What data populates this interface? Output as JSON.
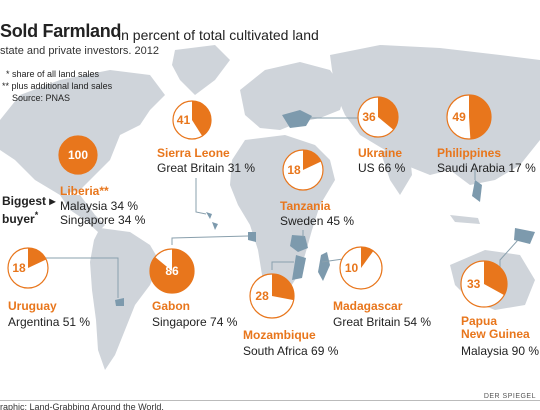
{
  "title": {
    "main": "Sold Farmland",
    "sub": "in percent of total cultivated land"
  },
  "subtitle": "state and private investors. 2012",
  "notes": {
    "star": "* share of all land sales",
    "dstar": "** plus additional land sales",
    "source": "Source: PNAS"
  },
  "biggest": {
    "line1": "Biggest ▸",
    "line2": "buyer",
    "mark": "*"
  },
  "footer": {
    "left": "raphic: Land-Grabbing Around the World.",
    "right": "DER SPIEGEL"
  },
  "colors": {
    "accent": "#e8761c",
    "map": "#cfd4da",
    "water": "#7d9aad",
    "line": "#8aa0ad"
  },
  "chart_data": {
    "type": "pie",
    "title": "Sold Farmland",
    "subtitle": "in percent of total cultivated land",
    "unit": "percent",
    "countries": [
      {
        "key": "sierra_leone",
        "country": "Sierra Leone",
        "value": 41,
        "buyers": [
          "Great Britain 31 %"
        ]
      },
      {
        "key": "liberia",
        "country": "Liberia",
        "mark": "**",
        "value": 100,
        "buyers": [
          "Malaysia 34 %",
          "Singapore 34 %"
        ]
      },
      {
        "key": "uruguay",
        "country": "Uruguay",
        "value": 18,
        "buyers": [
          "Argentina 51 %"
        ]
      },
      {
        "key": "gabon",
        "country": "Gabon",
        "value": 86,
        "buyers": [
          "Singapore 74 %"
        ]
      },
      {
        "key": "tanzania",
        "country": "Tanzania",
        "value": 18,
        "buyers": [
          "Sweden 45 %"
        ]
      },
      {
        "key": "ukraine",
        "country": "Ukraine",
        "value": 36,
        "buyers": [
          "US 66 %"
        ]
      },
      {
        "key": "philippines",
        "country": "Philippines",
        "value": 49,
        "buyers": [
          "Saudi Arabia 17 %"
        ]
      },
      {
        "key": "mozambique",
        "country": "Mozambique",
        "value": 28,
        "buyers": [
          "South Africa 69 %"
        ]
      },
      {
        "key": "madagascar",
        "country": "Madagascar",
        "value": 10,
        "buyers": [
          "Great Britain 54 %"
        ]
      },
      {
        "key": "papua",
        "country": "Papua New Guinea",
        "country_lines": [
          "Papua",
          "New Guinea"
        ],
        "value": 33,
        "buyers": [
          "Malaysia 90 %"
        ]
      }
    ]
  }
}
